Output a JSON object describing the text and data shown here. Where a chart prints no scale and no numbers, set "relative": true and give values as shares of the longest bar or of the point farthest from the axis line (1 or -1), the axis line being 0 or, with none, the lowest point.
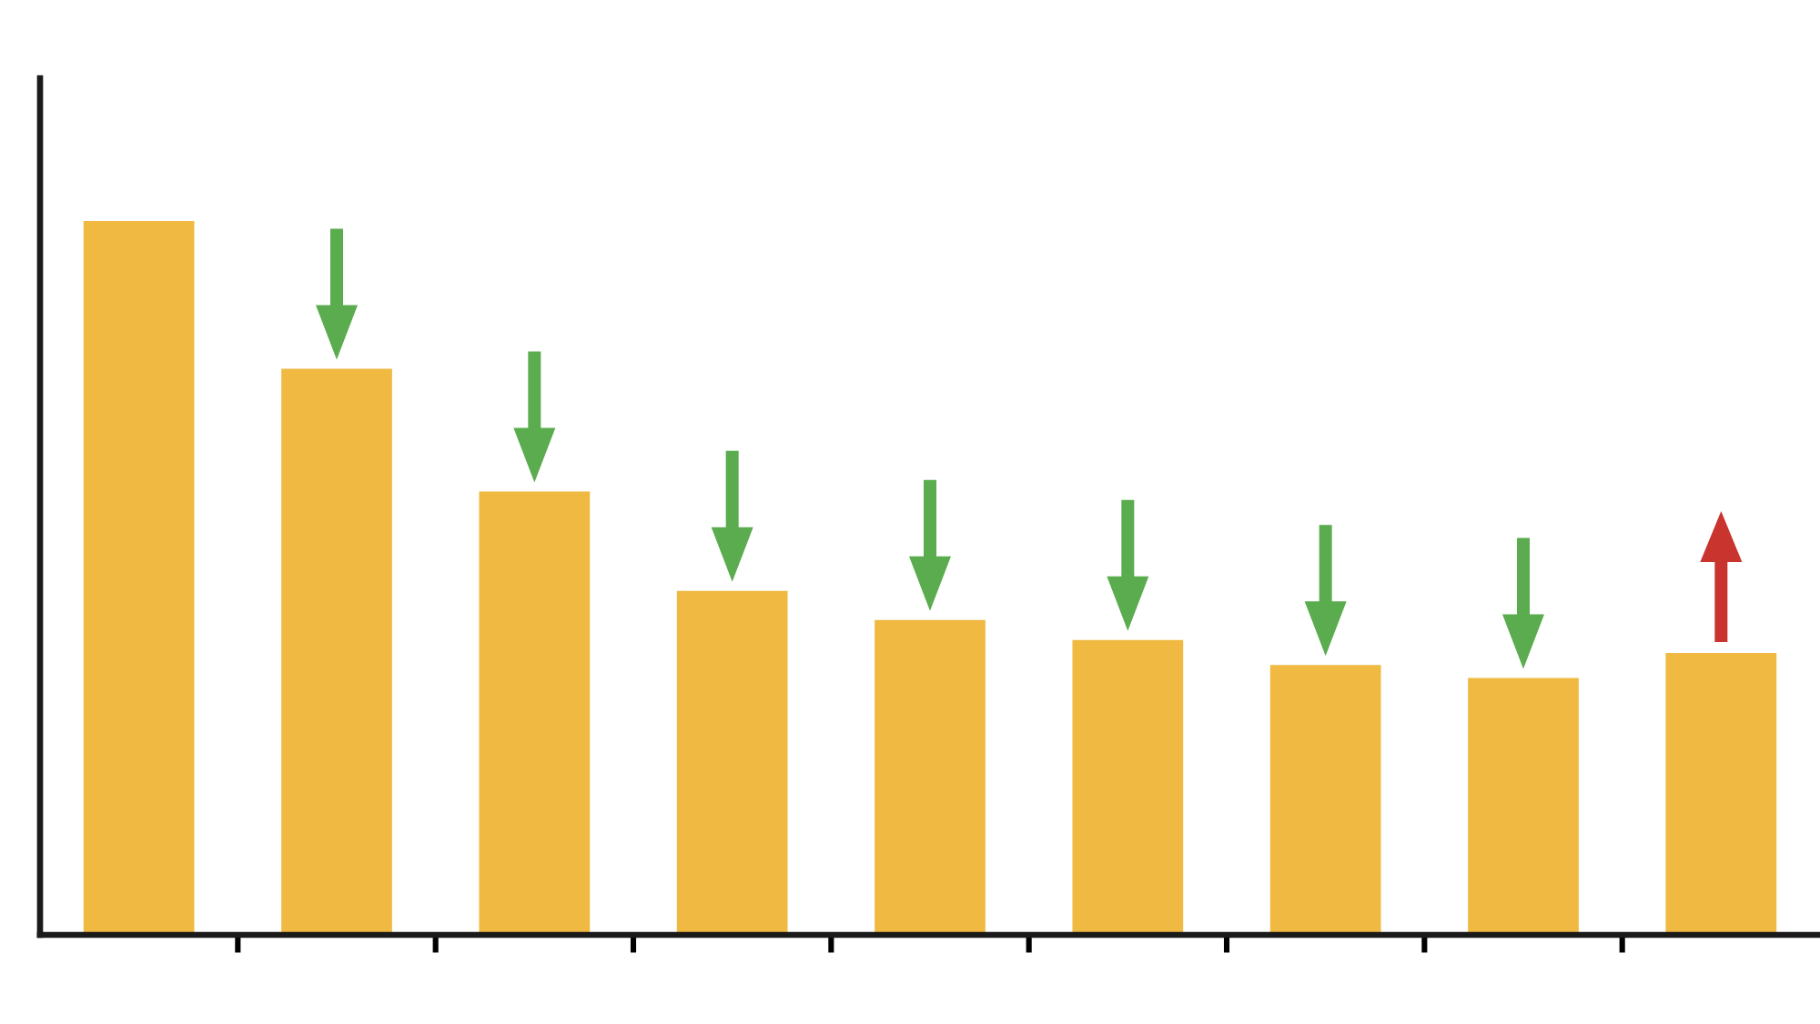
{
  "chart_data": {
    "type": "bar",
    "categories": [
      null,
      null,
      null,
      null,
      null,
      null,
      null,
      null,
      null
    ],
    "values": [
      1,
      0.793,
      0.621,
      0.482,
      0.441,
      0.413,
      0.378,
      0.36,
      0.395
    ],
    "color": "#f0b941",
    "relative": true
  }
}
